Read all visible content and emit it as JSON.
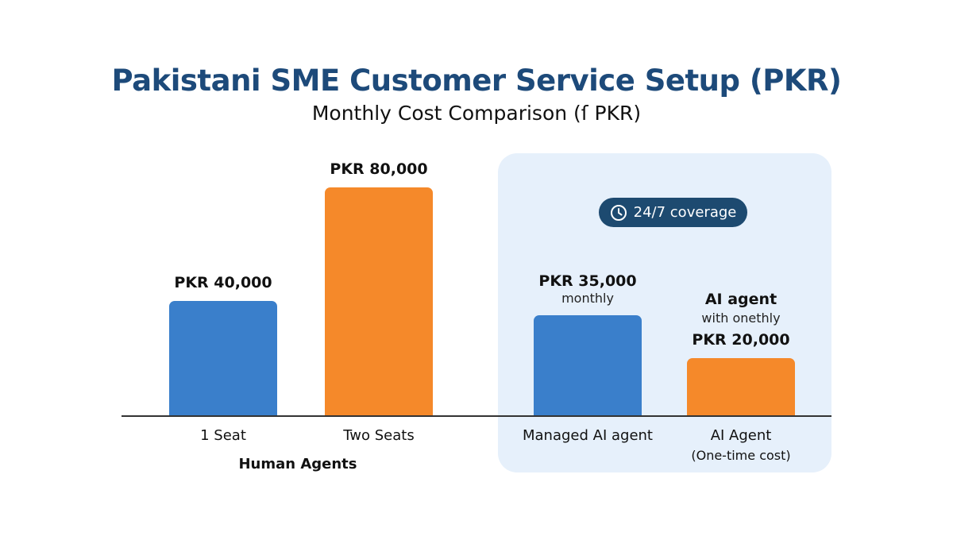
{
  "title": "Pakistani SME Customer Service Setup (PKR)",
  "subtitle": "Monthly Cost Comparison (ſ PKR)",
  "badge": {
    "icon": "clock-icon",
    "text": "24/7 coverage"
  },
  "group_label": "Human Agents",
  "colors": {
    "title": "#1d4a7a",
    "blue": "#3a7fcb",
    "orange": "#f5892a",
    "panel": "#e6f0fb",
    "badge": "#1d4a70"
  },
  "chart_data": {
    "type": "bar",
    "title": "Pakistani SME Customer Service Setup (PKR)",
    "subtitle": "Monthly Cost Comparison (ſ PKR)",
    "xlabel": "",
    "ylabel": "",
    "ylim": [
      0,
      80000
    ],
    "grid": false,
    "categories": [
      "1 Seat",
      "Two Seats",
      "Managed AI agent",
      "AI Agent"
    ],
    "category_notes": [
      "",
      "",
      "",
      "(One-time cost)"
    ],
    "values": [
      40000,
      80000,
      35000,
      20000
    ],
    "value_labels": [
      "PKR 40,000",
      "PKR 80,000",
      "PKR 35,000",
      "PKR 20,000"
    ],
    "bar_colors": [
      "#3a7fcb",
      "#f5892a",
      "#3a7fcb",
      "#f5892a"
    ],
    "annotations": {
      "managed_note": "monthly",
      "ai_title": "AI agent",
      "ai_note": "with onethly"
    }
  }
}
